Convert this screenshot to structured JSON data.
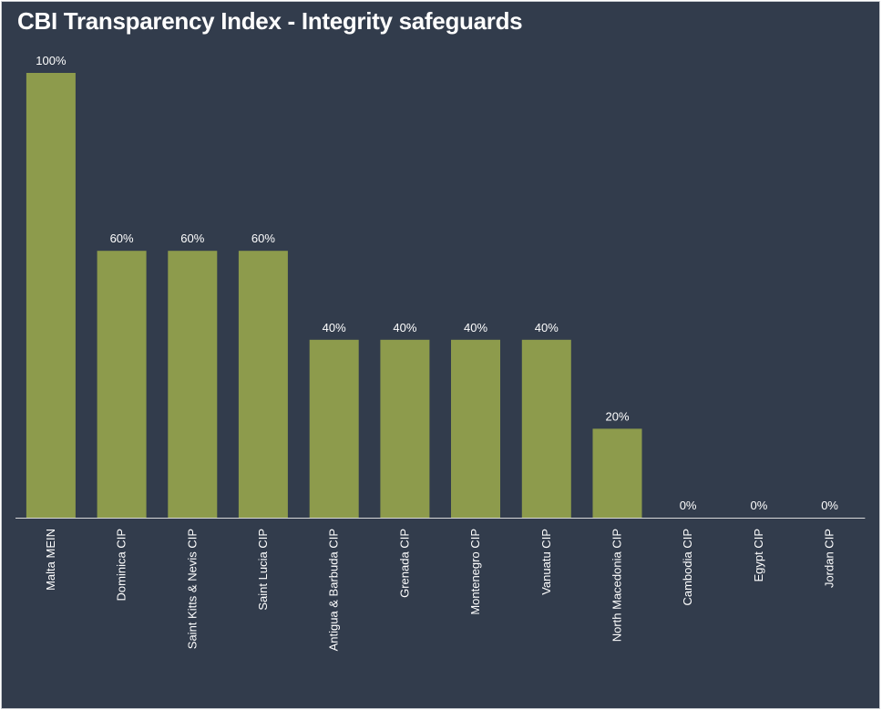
{
  "chart_data": {
    "type": "bar",
    "title": "CBI Transparency Index - Integrity safeguards",
    "xlabel": "",
    "ylabel": "",
    "ylim": [
      0,
      100
    ],
    "grid": false,
    "legend": "none",
    "categories": [
      "Malta MEIN",
      "Dominica CIP",
      "Saint Kitts & Nevis CIP",
      "Saint Lucia CIP",
      "Antigua & Barbuda CIP",
      "Grenada CIP",
      "Montenegro CIP",
      "Vanuatu CIP",
      "North Macedonia CIP",
      "Cambodia CIP",
      "Egypt CIP",
      "Jordan CIP"
    ],
    "values": [
      100,
      60,
      60,
      60,
      40,
      40,
      40,
      40,
      20,
      0,
      0,
      0
    ],
    "data_labels": [
      "100%",
      "60%",
      "60%",
      "60%",
      "40%",
      "40%",
      "40%",
      "40%",
      "20%",
      "0%",
      "0%",
      "0%"
    ],
    "colors": {
      "background": "#323c4c",
      "bar": "#8d9b4c",
      "text": "#ffffff",
      "axis": "#d9d9d9"
    }
  }
}
